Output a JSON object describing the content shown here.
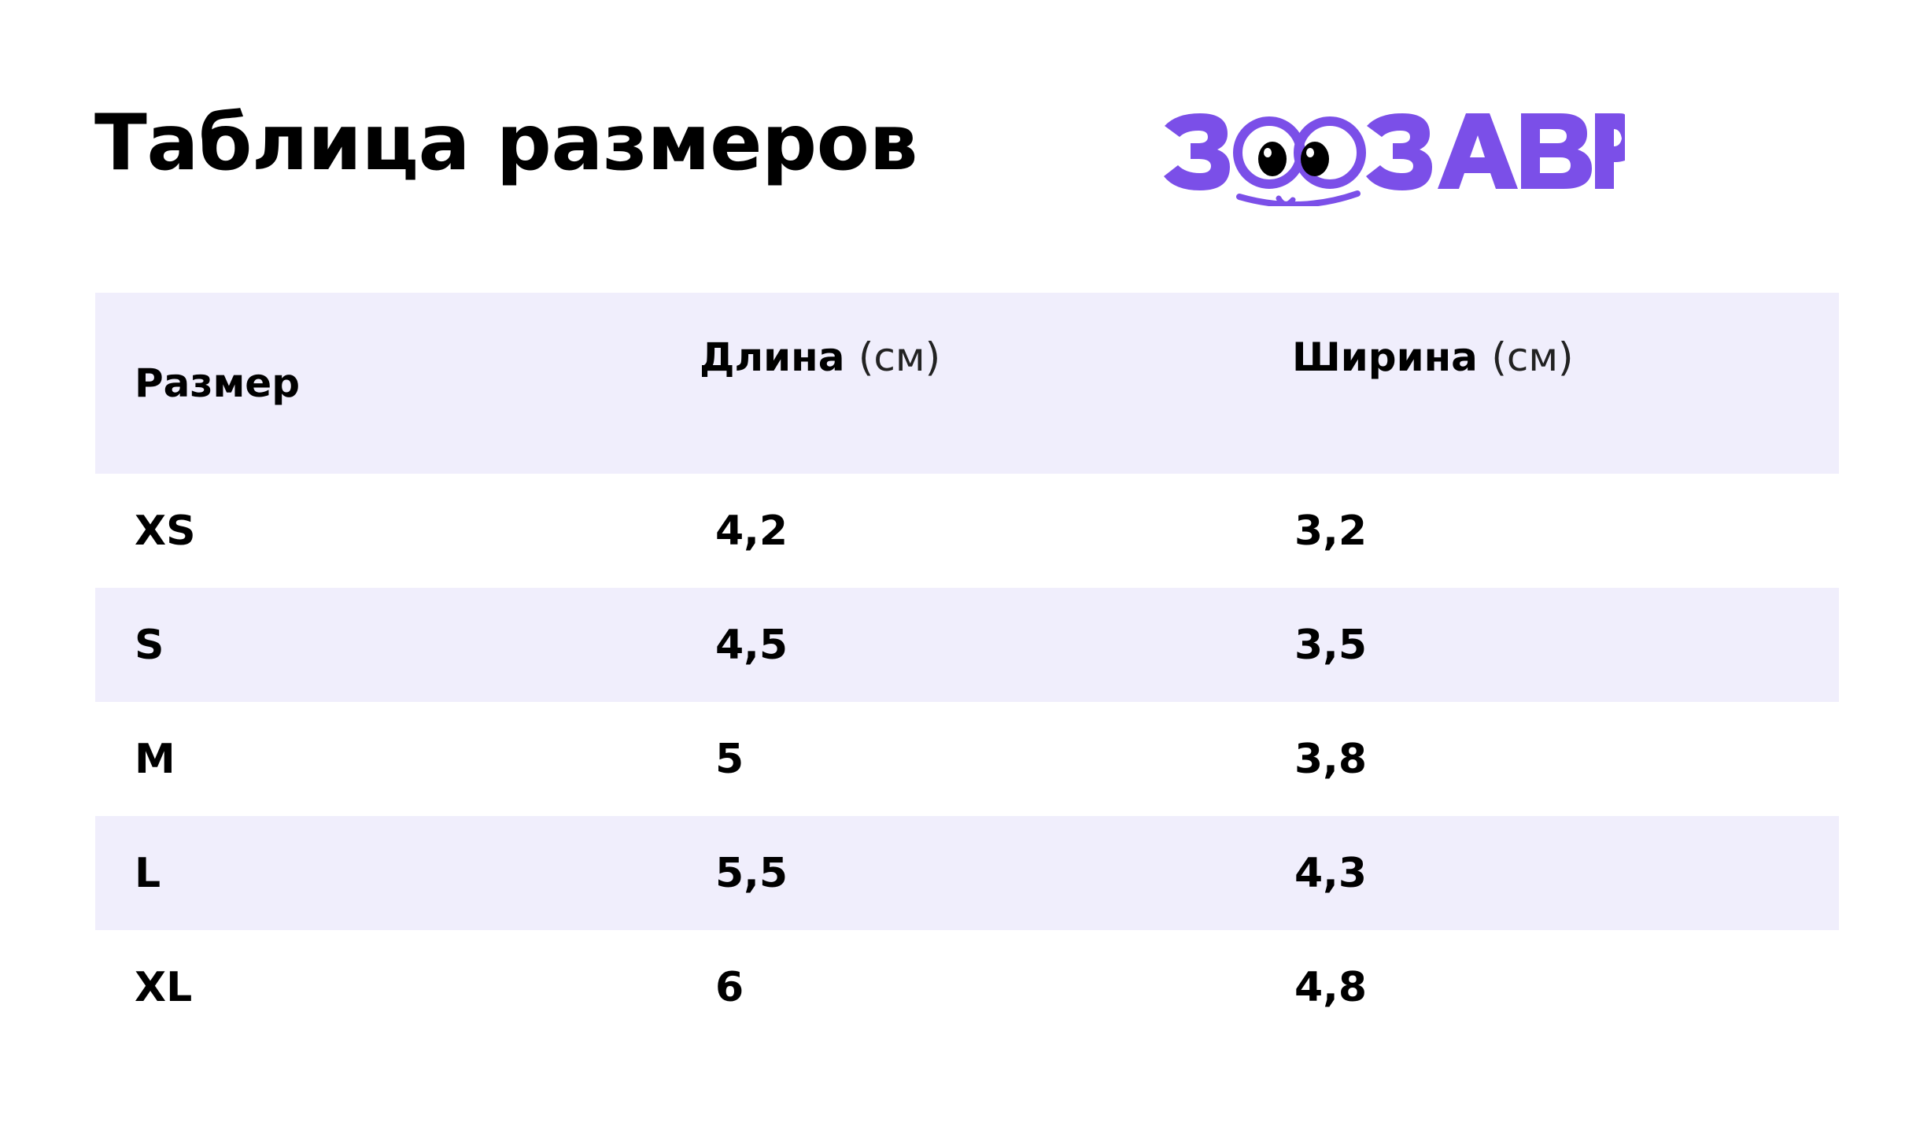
{
  "title": "Таблица размеров",
  "logo": {
    "text": "ЗООЗАВР",
    "brand_color": "#7b4fe8"
  },
  "colors": {
    "stripe": "#f0eefc",
    "text": "#000000"
  },
  "table": {
    "headers": {
      "size": "Размер",
      "length_label": "Длина",
      "length_unit": "(см)",
      "width_label": "Ширина",
      "width_unit": "(см)"
    },
    "rows": [
      {
        "size": "XS",
        "length": "4,2",
        "width": "3,2"
      },
      {
        "size": "S",
        "length": "4,5",
        "width": "3,5"
      },
      {
        "size": "M",
        "length": "5",
        "width": "3,8"
      },
      {
        "size": "L",
        "length": "5,5",
        "width": "4,3"
      },
      {
        "size": "XL",
        "length": "6",
        "width": "4,8"
      }
    ]
  }
}
